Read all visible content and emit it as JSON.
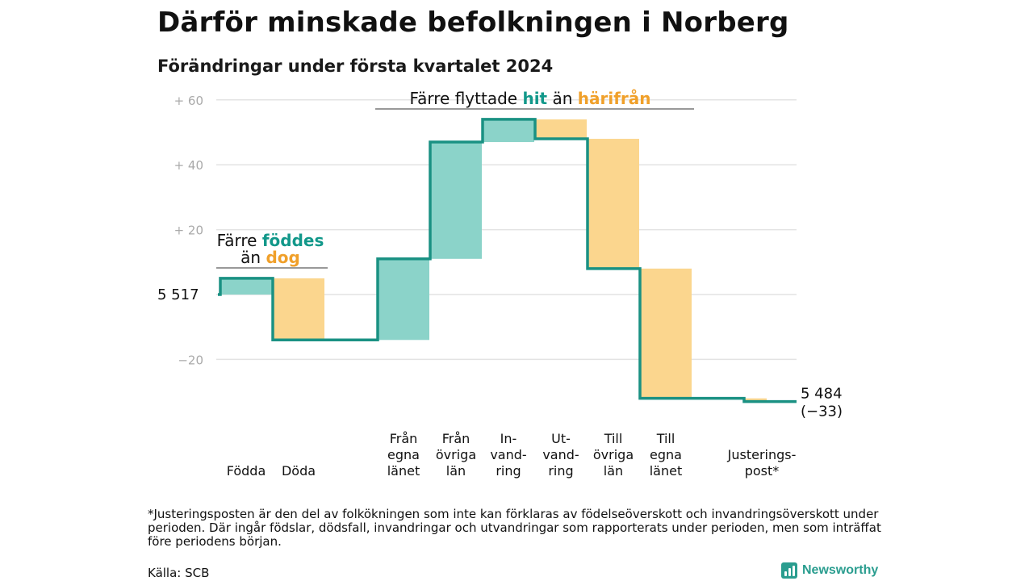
{
  "chart_data": {
    "type": "waterfall",
    "title": "Därför minskade befolkningen i Norberg",
    "subtitle": "Förändringar under första kvartalet 2024",
    "y_ticks": [
      {
        "value": 60,
        "label": "+  60"
      },
      {
        "value": 40,
        "label": "+  40"
      },
      {
        "value": 20,
        "label": "+  20"
      },
      {
        "value": -20,
        "label": "−20"
      }
    ],
    "ylim": [
      -35,
      60
    ],
    "start": {
      "value": 5517,
      "label": "5  517"
    },
    "end": {
      "value": 5484,
      "label": "5 484",
      "change_label": "(−33)"
    },
    "steps": [
      {
        "label": [
          "Födda"
        ],
        "change": 5,
        "kind": "positive"
      },
      {
        "label": [
          "Döda"
        ],
        "change": -19,
        "kind": "negative"
      },
      {
        "label": [
          "Från",
          "egna",
          "länet"
        ],
        "change": 25,
        "kind": "positive"
      },
      {
        "label": [
          "Från",
          "övriga",
          "län"
        ],
        "change": 36,
        "kind": "positive"
      },
      {
        "label": [
          "In-",
          "vand-",
          "ring"
        ],
        "change": 7,
        "kind": "positive"
      },
      {
        "label": [
          "Ut-",
          "vand-",
          "ring"
        ],
        "change": -6,
        "kind": "negative"
      },
      {
        "label": [
          "Till",
          "övriga",
          "län"
        ],
        "change": -40,
        "kind": "negative"
      },
      {
        "label": [
          "Till",
          "egna",
          "länet"
        ],
        "change": -40,
        "kind": "negative"
      },
      {
        "label": [
          "Justerings-",
          "post*"
        ],
        "change": -1,
        "kind": "negative"
      }
    ],
    "annotations": {
      "births": {
        "line1_plain": "Färre ",
        "line1_bold": "föddes",
        "line2_plain": "än ",
        "line2_bold": "dog"
      },
      "migration": {
        "plain1": "Färre flyttade ",
        "bold1": "hit",
        "plain2": " än ",
        "bold2": "härifrån"
      }
    },
    "colors": {
      "positive": "#8bd3c9",
      "negative": "#fbd68e",
      "line": "#1a9183",
      "grid": "#e3e3e3",
      "teal_text": "#12988a",
      "orange_text": "#f0a02a"
    }
  },
  "footnote": "*Justeringsposten är den del av folkökningen som inte kan förklaras av födelseöverskott och invandringsöverskott under perioden. Där ingår födslar, dödsfall, invandringar och utvandringar som rapporterats under perioden, men som inträffat före periodens början.",
  "source": "Källa: SCB",
  "brand": {
    "name": "Newsworthy",
    "icon": "bar-chart-icon"
  }
}
